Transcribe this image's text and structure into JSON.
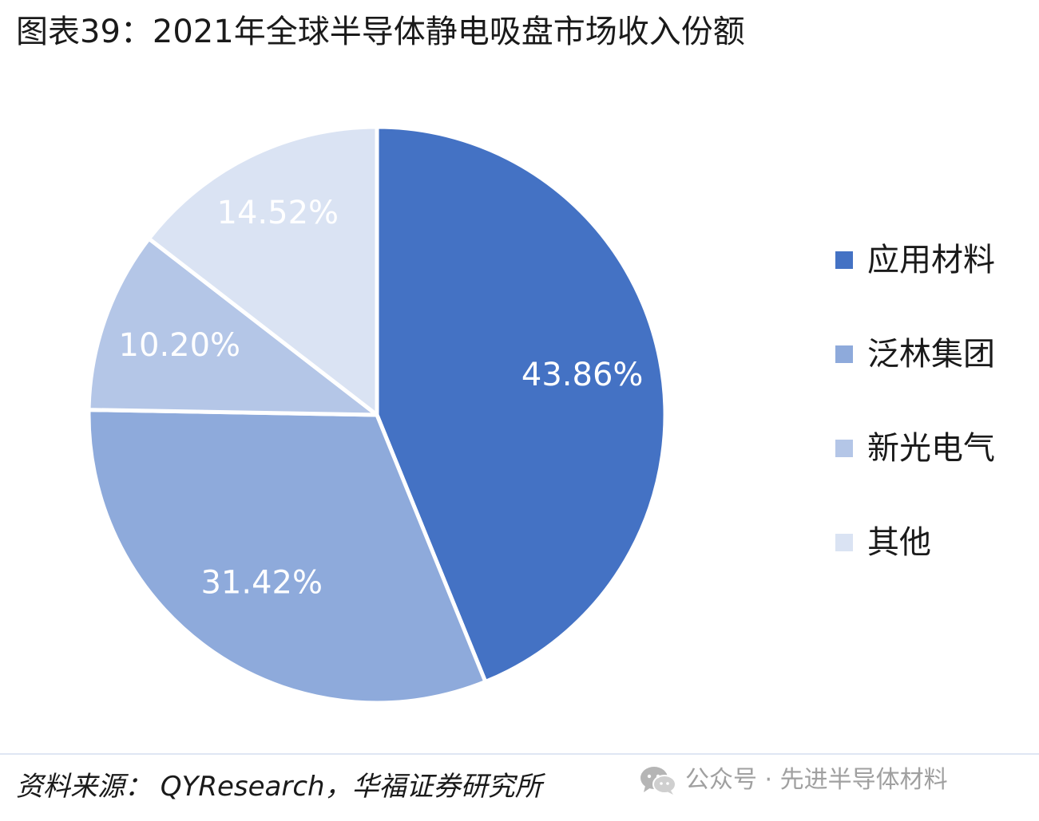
{
  "title": "图表39：2021年全球半导体静电吸盘市场收入份额",
  "source": "资料来源： QYResearch，华福证券研究所",
  "watermark": {
    "icon": "wechat-icon",
    "text": "公众号 · 先进半导体材料"
  },
  "chart_data": {
    "type": "pie",
    "title": "图表39：2021年全球半导体静电吸盘市场收入份额",
    "slices": [
      {
        "label": "应用材料",
        "value": 43.86,
        "display": "43.86%",
        "color": "#4472c4"
      },
      {
        "label": "泛林集团",
        "value": 31.42,
        "display": "31.42%",
        "color": "#8eaadb"
      },
      {
        "label": "新光电气",
        "value": 10.2,
        "display": "10.20%",
        "color": "#b4c6e7"
      },
      {
        "label": "其他",
        "value": 14.52,
        "display": "14.52%",
        "color": "#dae3f3"
      }
    ],
    "legend_position": "right",
    "start_angle": "12 o'clock",
    "direction": "clockwise"
  }
}
